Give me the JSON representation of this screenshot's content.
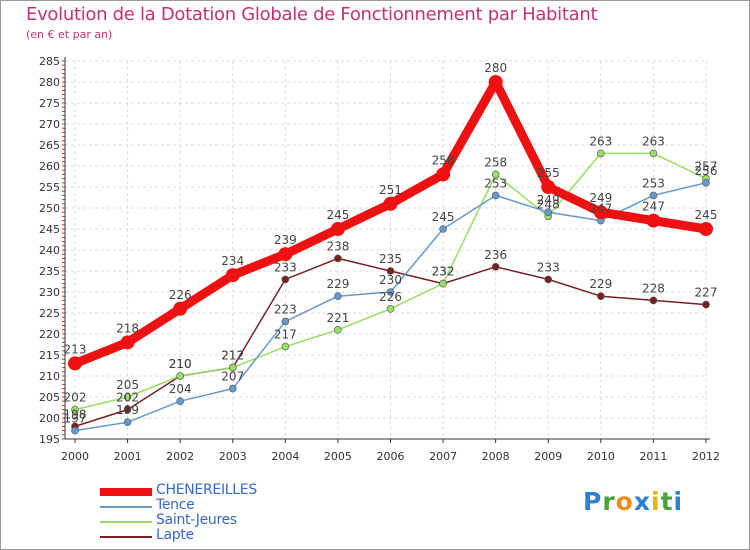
{
  "title": "Evolution de la Dotation Globale de Fonctionnement par Habitant",
  "subtitle": "(en € et par an)",
  "brand": {
    "letters": [
      "P",
      "r",
      "o",
      "x",
      "i",
      "t",
      "i"
    ],
    "colors": [
      "#2f7fd0",
      "#4aa23a",
      "#f08c1e",
      "#2f7fd0",
      "#e2b414",
      "#4aa23a",
      "#2f7fd0"
    ]
  },
  "chart_data": {
    "type": "line",
    "title": "Evolution de la Dotation Globale de Fonctionnement par Habitant",
    "subtitle": "(en € et par an)",
    "xlabel": "",
    "ylabel": "",
    "categories": [
      "2000",
      "2001",
      "2002",
      "2003",
      "2004",
      "2005",
      "2006",
      "2007",
      "2008",
      "2009",
      "2010",
      "2011",
      "2012"
    ],
    "ylim": [
      195,
      285
    ],
    "yticks": [
      195,
      200,
      205,
      210,
      215,
      220,
      225,
      230,
      235,
      240,
      245,
      250,
      255,
      260,
      265,
      270,
      275,
      280,
      285
    ],
    "grid": true,
    "legend_position": "bottom-left",
    "series": [
      {
        "name": "CHENEREILLES",
        "color": "#ee1111",
        "values": [
          213,
          218,
          226,
          234,
          239,
          245,
          251,
          258,
          280,
          255,
          249,
          247,
          245
        ]
      },
      {
        "name": "Tence",
        "color": "#6699cc",
        "values": [
          197,
          199,
          204,
          207,
          223,
          229,
          230,
          245,
          253,
          249,
          247,
          253,
          256
        ]
      },
      {
        "name": "Saint-Jeures",
        "color": "#99dd66",
        "values": [
          202,
          205,
          210,
          212,
          217,
          221,
          226,
          232,
          258,
          248,
          263,
          263,
          257
        ]
      },
      {
        "name": "Lapte",
        "color": "#772222",
        "values": [
          198,
          202,
          210,
          212,
          233,
          238,
          235,
          232,
          236,
          233,
          229,
          228,
          227
        ]
      }
    ]
  }
}
